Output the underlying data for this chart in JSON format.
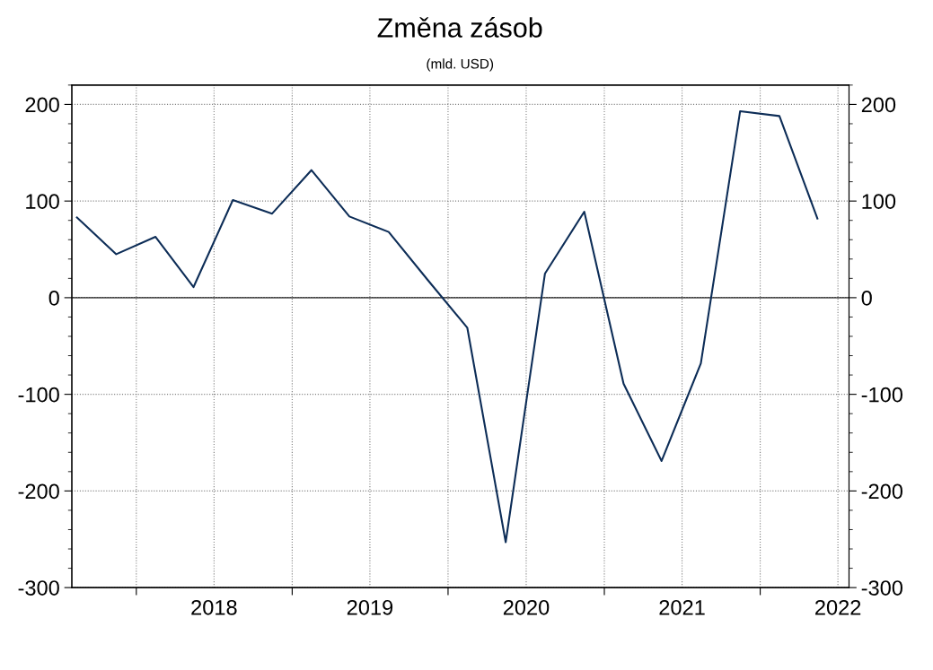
{
  "chart_data": {
    "type": "line",
    "title": "Změna zásob",
    "subtitle": "(mld. USD)",
    "x": [
      "2017-08-15",
      "2017-11-15",
      "2018-02-15",
      "2018-05-15",
      "2018-08-15",
      "2018-11-15",
      "2019-02-15",
      "2019-05-15",
      "2019-08-15",
      "2019-11-15",
      "2020-02-15",
      "2020-05-15",
      "2020-08-15",
      "2020-11-15",
      "2021-02-15",
      "2021-05-15",
      "2021-08-15",
      "2021-11-15",
      "2022-02-15",
      "2022-05-15"
    ],
    "series": [
      {
        "color": "#0d2d57",
        "values": [
          83,
          45,
          63,
          11,
          101,
          87,
          132,
          84,
          68,
          18,
          -31,
          -253,
          25,
          89,
          -89,
          -169,
          -68,
          193,
          188,
          82
        ]
      }
    ],
    "xlim": [
      "2017-08-03",
      "2022-07-28"
    ],
    "xticks": [
      {
        "value": "2018-01-01",
        "label": null
      },
      {
        "value": "2018-07-02",
        "label": "2018"
      },
      {
        "value": "2019-01-01",
        "label": null
      },
      {
        "value": "2019-07-02",
        "label": "2019"
      },
      {
        "value": "2020-01-01",
        "label": null
      },
      {
        "value": "2020-07-02",
        "label": "2020"
      },
      {
        "value": "2021-01-01",
        "label": null
      },
      {
        "value": "2021-07-02",
        "label": "2021"
      },
      {
        "value": "2022-01-01",
        "label": null
      },
      {
        "value": "2022-07-02",
        "label": "2022"
      }
    ],
    "ylim": [
      -300,
      220
    ],
    "yticks": [
      -300,
      -200,
      -100,
      0,
      100,
      200
    ],
    "y2lim": [
      -300,
      220
    ],
    "y2ticks": [
      -300,
      -200,
      -100,
      0,
      100,
      200
    ],
    "ref_lines": [
      {
        "axis": "y",
        "value": 0,
        "color": "#000000"
      }
    ],
    "grid": true,
    "legend": false,
    "marker": "none",
    "line_style": "solid"
  }
}
